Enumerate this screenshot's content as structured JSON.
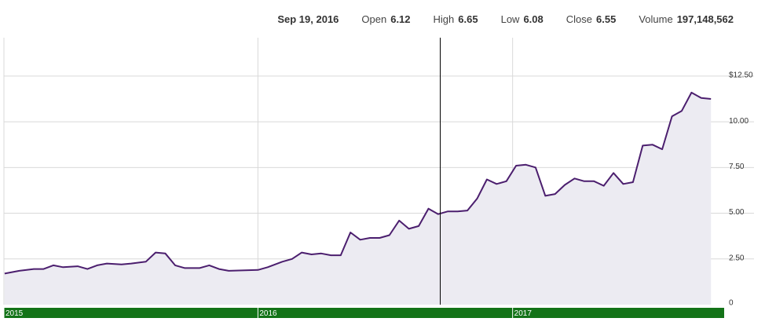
{
  "quote": {
    "date": "Sep 19, 2016",
    "open_label": "Open",
    "open": "6.12",
    "high_label": "High",
    "high": "6.65",
    "low_label": "Low",
    "low": "6.08",
    "close_label": "Close",
    "close": "6.55",
    "volume_label": "Volume",
    "volume": "197,148,562"
  },
  "colors": {
    "line": "#4b1e6e",
    "area": "#ecebf2",
    "grid": "#d9d9d9",
    "time_bar": "#137318",
    "cursor": "#000000"
  },
  "chart_data": {
    "type": "area",
    "title": "",
    "xlabel": "",
    "ylabel": "",
    "ylim": [
      0,
      14.6
    ],
    "y_ticks": [
      {
        "value": 0,
        "label": "0"
      },
      {
        "value": 2.5,
        "label": "2.50"
      },
      {
        "value": 5,
        "label": "5.00"
      },
      {
        "value": 7.5,
        "label": "7.50"
      },
      {
        "value": 10,
        "label": "10.00"
      },
      {
        "value": 12.5,
        "label": "$12.50"
      }
    ],
    "x_range": [
      "2015-01-01",
      "2017-11-01"
    ],
    "time_labels": [
      {
        "date": "2015-01-01",
        "label": "2015"
      },
      {
        "date": "2016-01-01",
        "label": "2016"
      },
      {
        "date": "2017-01-01",
        "label": "2017"
      }
    ],
    "cursor_date": "2016-09-19",
    "series": [
      {
        "values": [
          [
            "2015-01-02",
            1.7
          ],
          [
            "2015-01-23",
            1.85
          ],
          [
            "2015-02-13",
            1.95
          ],
          [
            "2015-02-27",
            1.95
          ],
          [
            "2015-03-13",
            2.15
          ],
          [
            "2015-03-27",
            2.05
          ],
          [
            "2015-04-17",
            2.1
          ],
          [
            "2015-05-01",
            1.95
          ],
          [
            "2015-05-15",
            2.15
          ],
          [
            "2015-05-29",
            2.25
          ],
          [
            "2015-06-19",
            2.2
          ],
          [
            "2015-07-03",
            2.25
          ],
          [
            "2015-07-24",
            2.35
          ],
          [
            "2015-08-07",
            2.85
          ],
          [
            "2015-08-21",
            2.8
          ],
          [
            "2015-09-04",
            2.15
          ],
          [
            "2015-09-18",
            2.0
          ],
          [
            "2015-10-09",
            2.0
          ],
          [
            "2015-10-23",
            2.15
          ],
          [
            "2015-11-06",
            1.95
          ],
          [
            "2015-11-20",
            1.85
          ],
          [
            "2016-01-01",
            1.9
          ],
          [
            "2016-01-15",
            2.05
          ],
          [
            "2016-02-05",
            2.35
          ],
          [
            "2016-02-19",
            2.5
          ],
          [
            "2016-03-04",
            2.85
          ],
          [
            "2016-03-18",
            2.75
          ],
          [
            "2016-04-01",
            2.8
          ],
          [
            "2016-04-15",
            2.7
          ],
          [
            "2016-04-29",
            2.7
          ],
          [
            "2016-05-13",
            3.95
          ],
          [
            "2016-05-27",
            3.55
          ],
          [
            "2016-06-10",
            3.65
          ],
          [
            "2016-06-24",
            3.65
          ],
          [
            "2016-07-08",
            3.8
          ],
          [
            "2016-07-22",
            4.6
          ],
          [
            "2016-08-05",
            4.15
          ],
          [
            "2016-08-19",
            4.3
          ],
          [
            "2016-09-02",
            5.25
          ],
          [
            "2016-09-16",
            4.95
          ],
          [
            "2016-09-30",
            5.1
          ],
          [
            "2016-10-14",
            5.1
          ],
          [
            "2016-10-28",
            5.15
          ],
          [
            "2016-11-11",
            5.8
          ],
          [
            "2016-11-25",
            6.85
          ],
          [
            "2016-12-09",
            6.6
          ],
          [
            "2016-12-23",
            6.75
          ],
          [
            "2017-01-06",
            7.6
          ],
          [
            "2017-01-20",
            7.65
          ],
          [
            "2017-02-03",
            7.5
          ],
          [
            "2017-02-17",
            5.95
          ],
          [
            "2017-03-03",
            6.05
          ],
          [
            "2017-03-17",
            6.55
          ],
          [
            "2017-03-31",
            6.9
          ],
          [
            "2017-04-14",
            6.75
          ],
          [
            "2017-04-28",
            6.75
          ],
          [
            "2017-05-12",
            6.5
          ],
          [
            "2017-05-26",
            7.2
          ],
          [
            "2017-06-09",
            6.6
          ],
          [
            "2017-06-23",
            6.7
          ],
          [
            "2017-07-07",
            8.7
          ],
          [
            "2017-07-21",
            8.75
          ],
          [
            "2017-08-04",
            8.5
          ],
          [
            "2017-08-18",
            10.3
          ],
          [
            "2017-09-01",
            10.6
          ],
          [
            "2017-09-15",
            11.6
          ],
          [
            "2017-09-29",
            11.3
          ],
          [
            "2017-10-13",
            11.25
          ]
        ]
      }
    ]
  }
}
